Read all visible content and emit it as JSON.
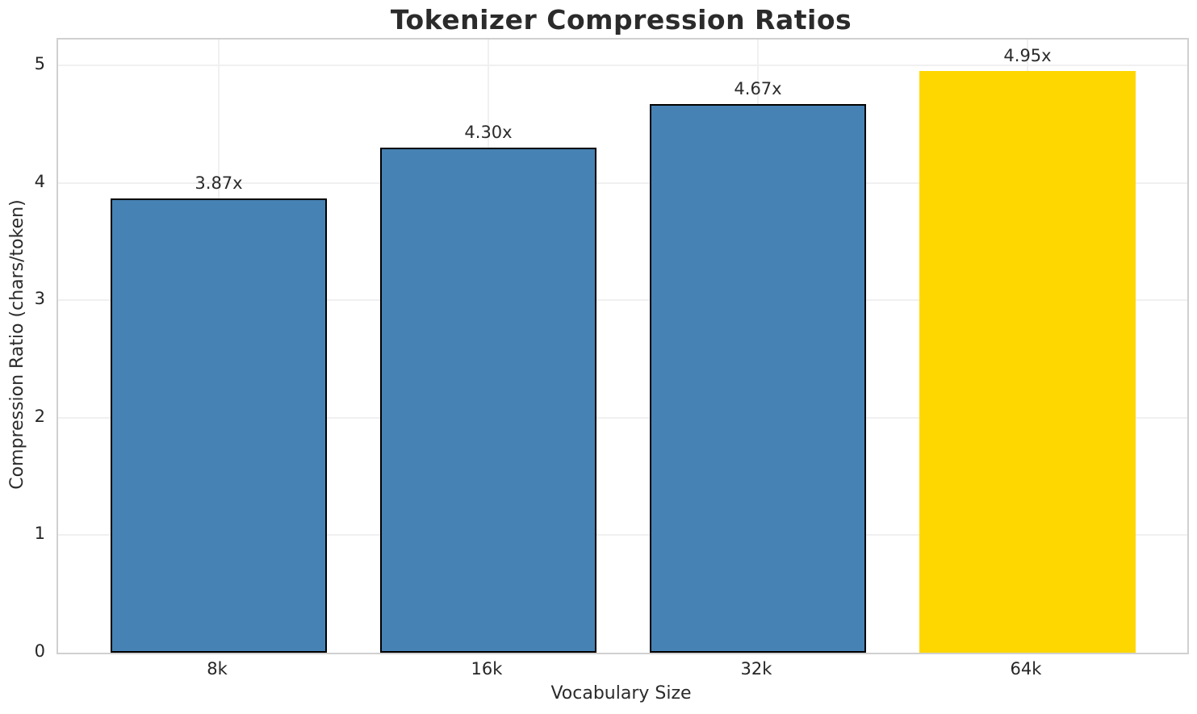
{
  "chart_data": {
    "type": "bar",
    "title": "Tokenizer Compression Ratios",
    "xlabel": "Vocabulary Size",
    "ylabel": "Compression Ratio (chars/token)",
    "categories": [
      "8k",
      "16k",
      "32k",
      "64k"
    ],
    "values": [
      3.87,
      4.3,
      4.67,
      4.95
    ],
    "value_labels": [
      "3.87x",
      "4.30x",
      "4.67x",
      "4.95x"
    ],
    "bar_colors": [
      "#4682B4",
      "#4682B4",
      "#4682B4",
      "#FFD700"
    ],
    "bar_edge_colors": [
      "#000000",
      "#000000",
      "#000000",
      "#FFD700"
    ],
    "highlighted_category": "64k",
    "highlight_color": "#FFD700",
    "base_color": "#4682B4",
    "ylim": [
      0,
      5.22
    ],
    "yticks": [
      0,
      1,
      2,
      3,
      4,
      5
    ],
    "grid": true,
    "legend_position": "none",
    "background_color": "#ffffff",
    "grid_color": "#f0f0f0",
    "spine_color": "#d0d0d0",
    "text_color": "#262626"
  }
}
